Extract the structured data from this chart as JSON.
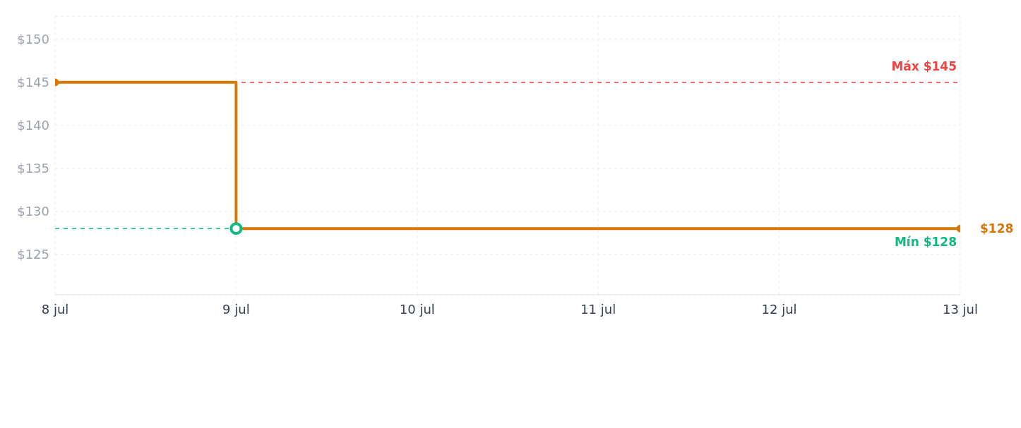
{
  "chart_data": {
    "type": "step",
    "x": [
      "--07-08",
      "--07-09",
      "--07-13"
    ],
    "series": [
      {
        "color": "#d97706",
        "values": [
          145,
          128,
          128
        ]
      }
    ],
    "xlim": [
      "--07-08",
      "--07-13"
    ],
    "xticks": [
      {
        "value": "--07-08",
        "label": "8 jul"
      },
      {
        "value": "--07-09",
        "label": "9 jul"
      },
      {
        "value": "--07-10",
        "label": "10 jul"
      },
      {
        "value": "--07-11",
        "label": "11 jul"
      },
      {
        "value": "--07-12",
        "label": "12 jul"
      },
      {
        "value": "--07-13",
        "label": "13 jul"
      }
    ],
    "ylim": [
      120.3,
      152.7
    ],
    "yticks": [
      {
        "value": 125,
        "label": "$125"
      },
      {
        "value": 130,
        "label": "$130"
      },
      {
        "value": 135,
        "label": "$135"
      },
      {
        "value": 140,
        "label": "$140"
      },
      {
        "value": 145,
        "label": "$145"
      },
      {
        "value": 150,
        "label": "$150"
      }
    ],
    "ref_lines": [
      {
        "axis": "y",
        "value": 145,
        "label": "Máx $145",
        "color": "#ef4444",
        "line_style": "dashed"
      },
      {
        "axis": "y",
        "value": 128,
        "label": "Mín $128",
        "color": "#10b981",
        "line_style": "dashed"
      }
    ],
    "annotations": [
      {
        "text": "$128",
        "x": "--07-13",
        "y": 128
      }
    ],
    "grid": true,
    "marker": "circle",
    "line_style": "solid",
    "legend": false
  }
}
